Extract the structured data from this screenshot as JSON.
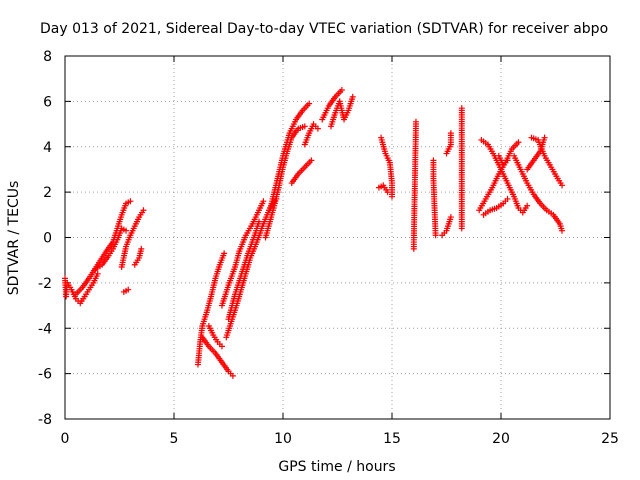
{
  "chart_data": {
    "type": "scatter",
    "title": "Day 013 of 2021, Sidereal Day-to-day VTEC variation (SDTVAR) for receiver abpo",
    "xlabel": "GPS time / hours",
    "ylabel": "SDTVAR / TECUs",
    "xlim": [
      0,
      25
    ],
    "ylim": [
      -8,
      8
    ],
    "xticks": [
      "0",
      "5",
      "10",
      "15",
      "20",
      "25"
    ],
    "yticks": [
      "-8",
      "-6",
      "-4",
      "-2",
      "0",
      "2",
      "4",
      "6",
      "8"
    ],
    "grid": true,
    "marker": "+",
    "series": [
      {
        "name": "SDTVAR",
        "color": "#ff0000",
        "segments": [
          [
            [
              0.0,
              -1.8
            ],
            [
              0.05,
              -2.6
            ],
            [
              0.1,
              -2.0
            ],
            [
              0.3,
              -2.3
            ],
            [
              0.5,
              -2.7
            ],
            [
              0.7,
              -2.9
            ],
            [
              0.9,
              -2.6
            ],
            [
              1.1,
              -2.3
            ],
            [
              1.3,
              -2.0
            ],
            [
              1.5,
              -1.6
            ]
          ],
          [
            [
              0.5,
              -2.5
            ],
            [
              0.8,
              -2.2
            ],
            [
              1.1,
              -1.8
            ],
            [
              1.5,
              -1.2
            ],
            [
              1.9,
              -0.6
            ],
            [
              2.2,
              -0.2
            ],
            [
              2.4,
              0.4
            ],
            [
              2.6,
              1.0
            ],
            [
              2.8,
              1.5
            ],
            [
              3.0,
              1.6
            ]
          ],
          [
            [
              1.4,
              -1.4
            ],
            [
              1.7,
              -1.2
            ],
            [
              2.0,
              -0.8
            ],
            [
              2.2,
              -0.5
            ],
            [
              2.4,
              -0.1
            ],
            [
              2.6,
              0.4
            ],
            [
              2.8,
              0.3
            ]
          ],
          [
            [
              2.6,
              -1.3
            ],
            [
              2.8,
              -0.4
            ],
            [
              3.0,
              0.1
            ],
            [
              3.2,
              0.5
            ],
            [
              3.4,
              0.9
            ],
            [
              3.6,
              1.2
            ]
          ],
          [
            [
              3.2,
              -1.2
            ],
            [
              3.4,
              -0.9
            ],
            [
              3.5,
              -0.5
            ]
          ],
          [
            [
              2.7,
              -2.4
            ],
            [
              2.9,
              -2.3
            ]
          ],
          [
            [
              6.1,
              -5.6
            ],
            [
              6.2,
              -4.6
            ],
            [
              6.3,
              -3.9
            ],
            [
              6.5,
              -3.3
            ],
            [
              6.7,
              -2.6
            ],
            [
              6.9,
              -1.8
            ],
            [
              7.1,
              -1.2
            ],
            [
              7.3,
              -0.7
            ]
          ],
          [
            [
              6.3,
              -4.4
            ],
            [
              6.6,
              -4.8
            ],
            [
              6.9,
              -5.1
            ],
            [
              7.2,
              -5.5
            ],
            [
              7.5,
              -5.9
            ],
            [
              7.7,
              -6.1
            ]
          ],
          [
            [
              6.6,
              -3.9
            ],
            [
              6.8,
              -4.3
            ],
            [
              7.0,
              -4.6
            ],
            [
              7.2,
              -4.8
            ]
          ],
          [
            [
              7.4,
              -4.4
            ],
            [
              7.6,
              -3.8
            ],
            [
              7.9,
              -2.9
            ],
            [
              8.2,
              -1.9
            ],
            [
              8.5,
              -0.9
            ],
            [
              8.8,
              -0.2
            ],
            [
              9.1,
              0.6
            ],
            [
              9.4,
              1.3
            ],
            [
              9.7,
              1.7
            ]
          ],
          [
            [
              7.2,
              -3.0
            ],
            [
              7.5,
              -2.1
            ],
            [
              7.8,
              -1.3
            ],
            [
              8.0,
              -0.6
            ],
            [
              8.3,
              0.1
            ],
            [
              8.6,
              0.6
            ],
            [
              8.9,
              1.2
            ],
            [
              9.1,
              1.6
            ]
          ],
          [
            [
              7.5,
              -3.6
            ],
            [
              7.8,
              -2.5
            ],
            [
              8.1,
              -1.6
            ],
            [
              8.4,
              -0.7
            ],
            [
              8.7,
              0.1
            ],
            [
              8.9,
              0.7
            ]
          ],
          [
            [
              9.2,
              0.0
            ],
            [
              9.4,
              0.7
            ],
            [
              9.6,
              1.4
            ],
            [
              9.8,
              2.2
            ],
            [
              10.0,
              3.1
            ],
            [
              10.2,
              3.8
            ],
            [
              10.4,
              4.4
            ],
            [
              10.7,
              4.8
            ],
            [
              11.0,
              4.9
            ]
          ],
          [
            [
              9.4,
              1.2
            ],
            [
              9.6,
              2.0
            ],
            [
              9.8,
              2.8
            ],
            [
              10.0,
              3.6
            ],
            [
              10.3,
              4.6
            ],
            [
              10.6,
              5.2
            ],
            [
              10.9,
              5.6
            ],
            [
              11.2,
              5.9
            ]
          ],
          [
            [
              10.4,
              2.4
            ],
            [
              10.7,
              2.8
            ],
            [
              11.0,
              3.1
            ],
            [
              11.3,
              3.4
            ]
          ],
          [
            [
              11.0,
              4.1
            ],
            [
              11.2,
              4.6
            ],
            [
              11.4,
              5.0
            ],
            [
              11.6,
              4.8
            ]
          ],
          [
            [
              11.8,
              5.2
            ],
            [
              12.1,
              5.8
            ],
            [
              12.4,
              6.2
            ],
            [
              12.7,
              6.5
            ]
          ],
          [
            [
              12.2,
              4.9
            ],
            [
              12.4,
              5.5
            ],
            [
              12.6,
              6.0
            ],
            [
              12.8,
              5.2
            ],
            [
              13.0,
              5.6
            ],
            [
              13.2,
              6.2
            ]
          ],
          [
            [
              14.5,
              4.4
            ],
            [
              14.7,
              3.7
            ],
            [
              14.9,
              3.3
            ],
            [
              15.0,
              2.4
            ],
            [
              15.0,
              1.8
            ]
          ],
          [
            [
              14.4,
              2.2
            ],
            [
              14.6,
              2.3
            ],
            [
              14.8,
              2.0
            ]
          ],
          [
            [
              16.1,
              5.1
            ],
            [
              16.0,
              -0.2
            ],
            [
              16.0,
              -0.5
            ]
          ],
          [
            [
              16.9,
              3.4
            ],
            [
              16.9,
              2.6
            ],
            [
              17.0,
              0.1
            ]
          ],
          [
            [
              17.5,
              3.7
            ],
            [
              17.7,
              4.1
            ],
            [
              17.7,
              4.6
            ]
          ],
          [
            [
              17.3,
              0.1
            ],
            [
              17.5,
              0.3
            ],
            [
              17.6,
              0.6
            ],
            [
              17.7,
              0.9
            ]
          ],
          [
            [
              18.2,
              0.4
            ],
            [
              18.2,
              0.9
            ],
            [
              18.2,
              5.7
            ]
          ],
          [
            [
              19.1,
              4.3
            ],
            [
              19.4,
              4.1
            ],
            [
              19.7,
              3.6
            ],
            [
              20.0,
              3.0
            ],
            [
              20.3,
              2.4
            ],
            [
              20.6,
              1.8
            ],
            [
              20.8,
              1.3
            ],
            [
              21.0,
              1.1
            ],
            [
              21.2,
              1.4
            ]
          ],
          [
            [
              19.0,
              1.2
            ],
            [
              19.3,
              1.7
            ],
            [
              19.6,
              2.2
            ],
            [
              19.9,
              2.8
            ],
            [
              20.2,
              3.3
            ],
            [
              20.5,
              3.9
            ],
            [
              20.8,
              4.2
            ]
          ],
          [
            [
              19.2,
              1.0
            ],
            [
              19.5,
              1.2
            ],
            [
              19.8,
              1.3
            ],
            [
              20.1,
              1.5
            ],
            [
              20.3,
              1.7
            ]
          ],
          [
            [
              20.6,
              3.6
            ],
            [
              20.9,
              3.0
            ],
            [
              21.2,
              2.4
            ],
            [
              21.5,
              1.9
            ],
            [
              21.8,
              1.5
            ],
            [
              22.1,
              1.2
            ],
            [
              22.4,
              1.0
            ],
            [
              22.7,
              0.6
            ],
            [
              22.8,
              0.3
            ]
          ],
          [
            [
              21.4,
              4.4
            ],
            [
              21.7,
              4.3
            ],
            [
              22.0,
              3.6
            ],
            [
              22.3,
              3.1
            ],
            [
              22.6,
              2.6
            ],
            [
              22.8,
              2.3
            ]
          ],
          [
            [
              21.2,
              3.0
            ],
            [
              21.5,
              3.4
            ],
            [
              21.8,
              3.8
            ],
            [
              22.0,
              4.4
            ]
          ],
          [
            [
              19.9,
              3.6
            ],
            [
              20.1,
              3.2
            ],
            [
              20.3,
              3.4
            ]
          ]
        ]
      }
    ]
  }
}
